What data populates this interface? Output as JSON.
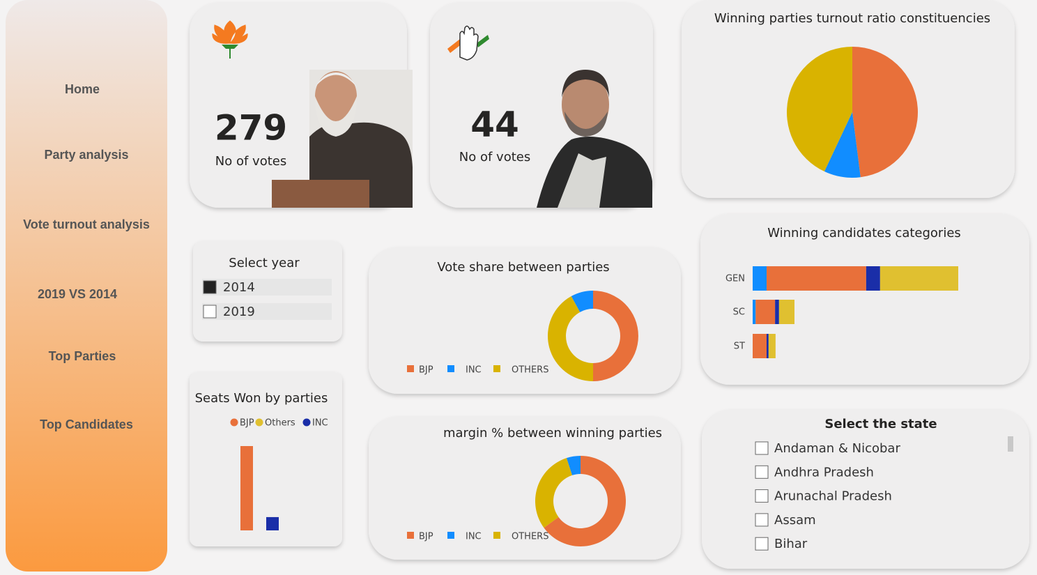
{
  "nav": {
    "items": [
      "Home",
      "Party analysis",
      "Vote turnout analysis",
      "2019 VS 2014",
      "Top Parties",
      "Top Candidates"
    ]
  },
  "cards": [
    {
      "value": 279,
      "label": "No of votes"
    },
    {
      "value": 44,
      "label": "No of votes"
    }
  ],
  "year_slicer": {
    "title": "Select year",
    "options": [
      {
        "label": "2014",
        "checked": true
      },
      {
        "label": "2019",
        "checked": false
      }
    ]
  },
  "state_slicer": {
    "title": "Select the state",
    "options": [
      {
        "label": "Andaman & Nicobar",
        "checked": false
      },
      {
        "label": "Andhra Pradesh",
        "checked": false
      },
      {
        "label": "Arunachal Pradesh",
        "checked": false
      },
      {
        "label": "Assam",
        "checked": false
      },
      {
        "label": "Bihar",
        "checked": false
      }
    ]
  },
  "chart_data": [
    {
      "type": "pie",
      "title": "Winning parties turnout ratio constituencies",
      "categories": [
        null,
        null,
        null
      ],
      "values": [
        48,
        43,
        9
      ],
      "colors": [
        "#e8703a",
        "#d9b300",
        "#118dff"
      ]
    },
    {
      "type": "donut",
      "title": "Vote share between parties",
      "categories": [
        "BJP",
        "INC",
        "OTHERS"
      ],
      "values": [
        50,
        8,
        42
      ],
      "colors": [
        "#e8703a",
        "#118dff",
        "#d9b300"
      ],
      "legend": true
    },
    {
      "type": "donut",
      "title": "margin % between winning parties",
      "categories": [
        "BJP",
        "INC",
        "OTHERS"
      ],
      "values": [
        65,
        5,
        30
      ],
      "colors": [
        "#e8703a",
        "#118dff",
        "#d9b300"
      ],
      "legend": true
    },
    {
      "type": "bar",
      "title": "Seats Won by parties",
      "series": [
        {
          "name": "BJP",
          "color": "#e8703a",
          "values": [
            279
          ]
        },
        {
          "name": "Others",
          "color": "#e0c030",
          "values": [
            null
          ]
        },
        {
          "name": "INC",
          "color": "#1a2ea8",
          "values": [
            44
          ]
        }
      ],
      "legend": true
    },
    {
      "type": "stacked-hbar",
      "title": "Winning candidates categories",
      "categories": [
        "GEN",
        "SC",
        "ST"
      ],
      "series": [
        {
          "color": "#118dff",
          "values": [
            28,
            6,
            0
          ]
        },
        {
          "color": "#e8703a",
          "values": [
            200,
            39,
            28
          ]
        },
        {
          "color": "#1a2ea8",
          "values": [
            28,
            8,
            4
          ]
        },
        {
          "color": "#e0c030",
          "values": [
            157,
            31,
            14
          ]
        }
      ]
    }
  ]
}
